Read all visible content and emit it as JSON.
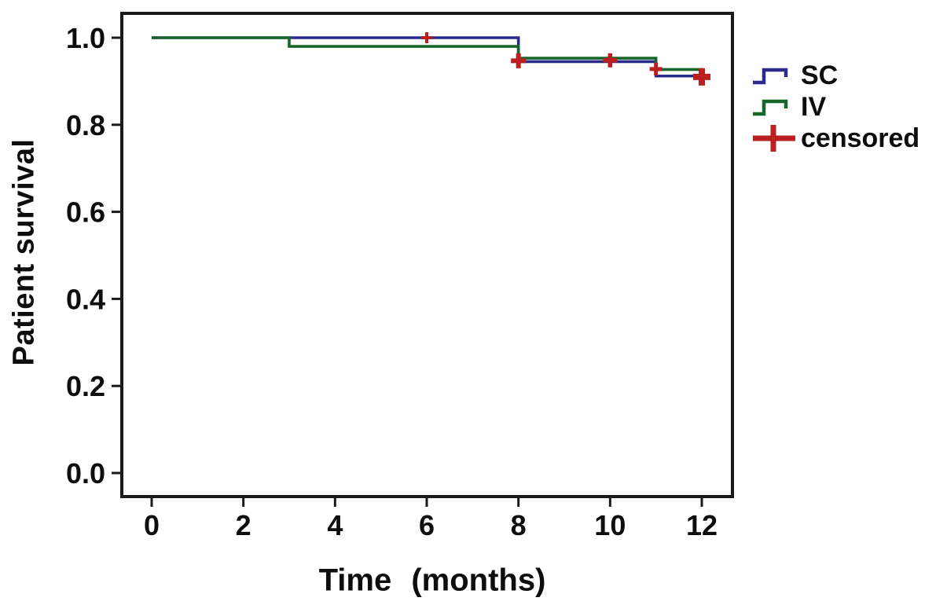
{
  "chart_data": {
    "type": "line",
    "subtype": "kaplan-meier-step",
    "xlabel": "Time (months)",
    "ylabel": "Patient survival",
    "xlim": [
      0,
      12
    ],
    "ylim": [
      0.0,
      1.0
    ],
    "grid": false,
    "frame_color": "#1a1a1a",
    "background": "#ffffff",
    "xticks": [
      {
        "value": 0,
        "label": "0"
      },
      {
        "value": 2,
        "label": "2"
      },
      {
        "value": 4,
        "label": "4"
      },
      {
        "value": 6,
        "label": "6"
      },
      {
        "value": 8,
        "label": "8"
      },
      {
        "value": 10,
        "label": "10"
      },
      {
        "value": 12,
        "label": "12"
      }
    ],
    "yticks": [
      {
        "value": 0.0,
        "label": "0.0"
      },
      {
        "value": 0.2,
        "label": "0.2"
      },
      {
        "value": 0.4,
        "label": "0.4"
      },
      {
        "value": 0.6,
        "label": "0.6"
      },
      {
        "value": 0.8,
        "label": "0.8"
      },
      {
        "value": 1.0,
        "label": "1.0"
      }
    ],
    "series": [
      {
        "name": "SC",
        "color": "#2b2b8c",
        "points": [
          [
            0,
            1.0
          ],
          [
            8,
            1.0
          ],
          [
            8,
            0.945
          ],
          [
            11,
            0.945
          ],
          [
            11,
            0.912
          ],
          [
            12,
            0.912
          ]
        ]
      },
      {
        "name": "IV",
        "color": "#17662a",
        "points": [
          [
            0,
            1.0
          ],
          [
            3,
            1.0
          ],
          [
            3,
            0.98
          ],
          [
            8,
            0.98
          ],
          [
            8,
            0.953
          ],
          [
            11,
            0.953
          ],
          [
            11,
            0.927
          ],
          [
            12,
            0.927
          ],
          [
            12,
            0.912
          ]
        ]
      }
    ],
    "censored": {
      "label": "censored",
      "color": "#bb1f1f",
      "points": [
        {
          "x": 6,
          "y": 1.0,
          "size": 14,
          "weight": 4
        },
        {
          "x": 8,
          "y": 0.947,
          "size": 19,
          "weight": 6
        },
        {
          "x": 10,
          "y": 0.948,
          "size": 18,
          "weight": 5.5
        },
        {
          "x": 11,
          "y": 0.928,
          "size": 16,
          "weight": 5
        },
        {
          "x": 12,
          "y": 0.91,
          "size": 22,
          "weight": 8
        }
      ]
    },
    "legend": {
      "position": "right",
      "entries": [
        "SC",
        "IV",
        "censored"
      ]
    }
  }
}
